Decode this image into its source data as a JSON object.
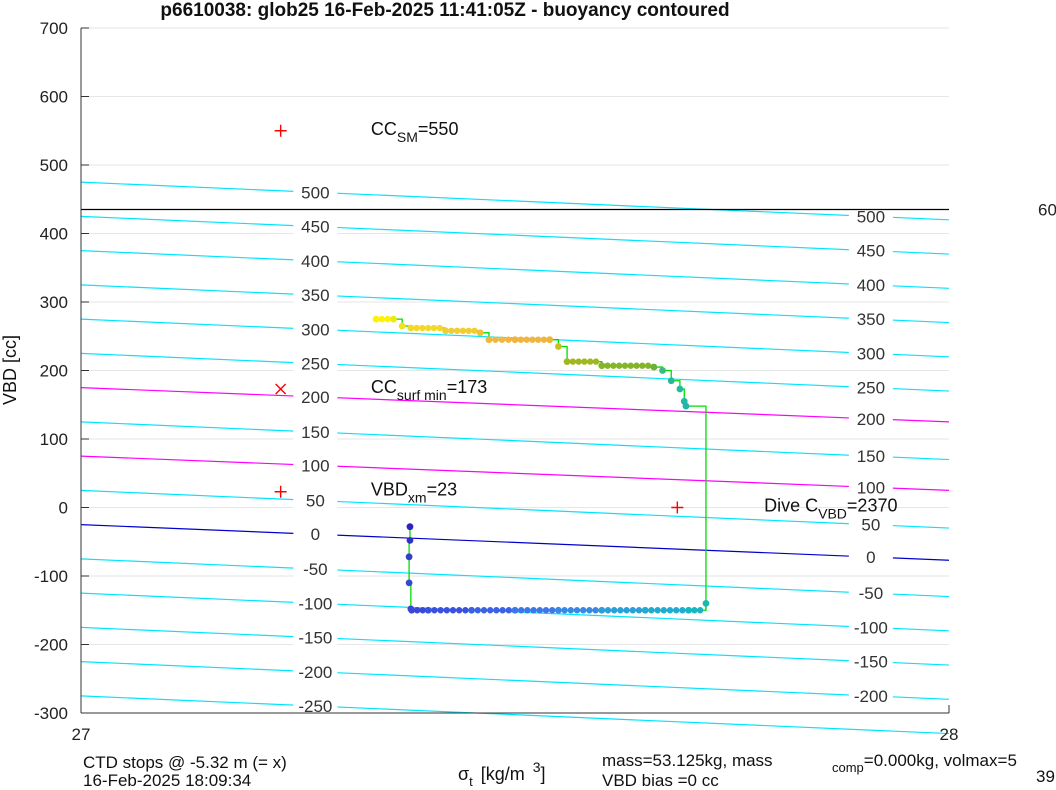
{
  "chart_data": {
    "type": "scatter",
    "title": "p6610038: glob25 16-Feb-2025 11:41:05Z - buoyancy contoured",
    "xlabel": "σt [kg/m 3]",
    "xlabel_sym": "σ",
    "xlabel_sub": "t",
    "xlabel_unit": "[kg/m",
    "xlabel_sup": "3",
    "xlabel_close": "]",
    "ylabel": "VBD [cc]",
    "xlim": [
      27,
      28
    ],
    "ylim": [
      -300,
      700
    ],
    "x_ticks": [
      "27",
      "28"
    ],
    "y_ticks": [
      -300,
      -200,
      -100,
      0,
      100,
      200,
      300,
      400,
      500,
      600,
      700
    ],
    "grid": true,
    "contour_lines": [
      {
        "level": "-250",
        "y_left": -275,
        "y_right": -330,
        "color": "#00e5ff"
      },
      {
        "level": "-200",
        "y_left": -225,
        "y_right": -280,
        "color": "#00e5ff"
      },
      {
        "level": "-150",
        "y_left": -175,
        "y_right": -230,
        "color": "#00e5ff"
      },
      {
        "level": "-100",
        "y_left": -125,
        "y_right": -180,
        "color": "#00e5ff"
      },
      {
        "level": "-50",
        "y_left": -75,
        "y_right": -130,
        "color": "#00e5ff"
      },
      {
        "level": "0",
        "y_left": -25,
        "y_right": -77,
        "color": "#0000cc"
      },
      {
        "level": "50",
        "y_left": 25,
        "y_right": -30,
        "color": "#00e5ff"
      },
      {
        "level": "100",
        "y_left": 75,
        "y_right": 25,
        "color": "#ff00ff"
      },
      {
        "level": "150",
        "y_left": 125,
        "y_right": 70,
        "color": "#00e5ff"
      },
      {
        "level": "200",
        "y_left": 175,
        "y_right": 125,
        "color": "#ff00ff"
      },
      {
        "level": "250",
        "y_left": 225,
        "y_right": 170,
        "color": "#00e5ff"
      },
      {
        "level": "300",
        "y_left": 275,
        "y_right": 220,
        "color": "#00e5ff"
      },
      {
        "level": "350",
        "y_left": 325,
        "y_right": 270,
        "color": "#00e5ff"
      },
      {
        "level": "400",
        "y_left": 375,
        "y_right": 320,
        "color": "#00e5ff"
      },
      {
        "level": "450",
        "y_left": 425,
        "y_right": 370,
        "color": "#00e5ff"
      },
      {
        "level": "500",
        "y_left": 475,
        "y_right": 420,
        "color": "#00e5ff"
      }
    ],
    "contour_label_x_left": 27.27,
    "contour_label_x_right": 27.91,
    "horizontal_line": {
      "y": 435,
      "color": "#000000",
      "label": "60"
    },
    "path_color": "#00dd00",
    "descent": {
      "x": [
        27.379,
        27.379,
        27.378,
        27.378,
        27.38,
        27.381,
        27.4,
        27.45,
        27.5,
        27.55,
        27.6,
        27.65,
        27.7,
        27.72
      ],
      "y": [
        -28,
        -48,
        -72,
        -110,
        -148,
        -150,
        -150,
        -150,
        -150,
        -150,
        -150,
        -150,
        -150,
        -140
      ]
    },
    "ascent": {
      "x": [
        27.34,
        27.36,
        27.37,
        27.38,
        27.42,
        27.46,
        27.47,
        27.5,
        27.54,
        27.55,
        27.56,
        27.6,
        27.66,
        27.67,
        27.68,
        27.69,
        27.695,
        27.697,
        27.72
      ],
      "y": [
        275,
        275,
        265,
        262,
        258,
        255,
        245,
        245,
        245,
        235,
        213,
        207,
        205,
        200,
        185,
        173,
        155,
        148,
        -150
      ]
    },
    "ascent_colors": [
      "#fff200",
      "#e8ec10",
      "#f3e020",
      "#f2d82a",
      "#f0ce32",
      "#f0c238",
      "#f2b73c",
      "#f0b440",
      "#e8b838",
      "#c8c020",
      "#a0b820",
      "#86b428",
      "#6cb038",
      "#40b880",
      "#28b898",
      "#22baa0",
      "#20b8a8",
      "#20b6aa",
      "#20b6aa"
    ],
    "descent_colors": [
      "#3020c0",
      "#3030c8",
      "#3040c8",
      "#3848cc",
      "#3a40d0",
      "#3a48d8",
      "#3c50e0",
      "#3c62e4",
      "#3c76e8",
      "#3888e4",
      "#2c9ed8",
      "#20acd0",
      "#18b6c0",
      "#1cb8b0"
    ],
    "markers": [
      {
        "type": "plus",
        "x": 27.23,
        "y": 550,
        "color": "#ff0000",
        "label_main": "CC",
        "label_sub": "SM",
        "label_rest": "=550",
        "label_x": 27.334
      },
      {
        "type": "cross",
        "x": 27.23,
        "y": 173,
        "color": "#ff0000",
        "label_main": "CC",
        "label_sub": "surf min",
        "label_rest": "=173",
        "label_x": 27.334
      },
      {
        "type": "plus",
        "x": 27.23,
        "y": 23,
        "color": "#ff0000",
        "label_main": "VBD",
        "label_sub": "xm",
        "label_rest": "=23",
        "label_x": 27.334
      },
      {
        "type": "plus",
        "x": 27.687,
        "y": 0,
        "color": "#ff0000",
        "label_main": "Dive C",
        "label_sub": "VBD",
        "label_rest": "=2370",
        "label_x": 27.787
      }
    ],
    "footer": {
      "left_line1": "CTD stops @ -5.32 m (= x)",
      "left_line2": "16-Feb-2025 18:09:34",
      "mid_line1": "mass=53.125kg, mass",
      "mid_sub": "comp",
      "mid_line1b": "=0.000kg, volmax=5",
      "mid_line2": "VBD bias =0 cc",
      "right_line2": "39"
    }
  }
}
